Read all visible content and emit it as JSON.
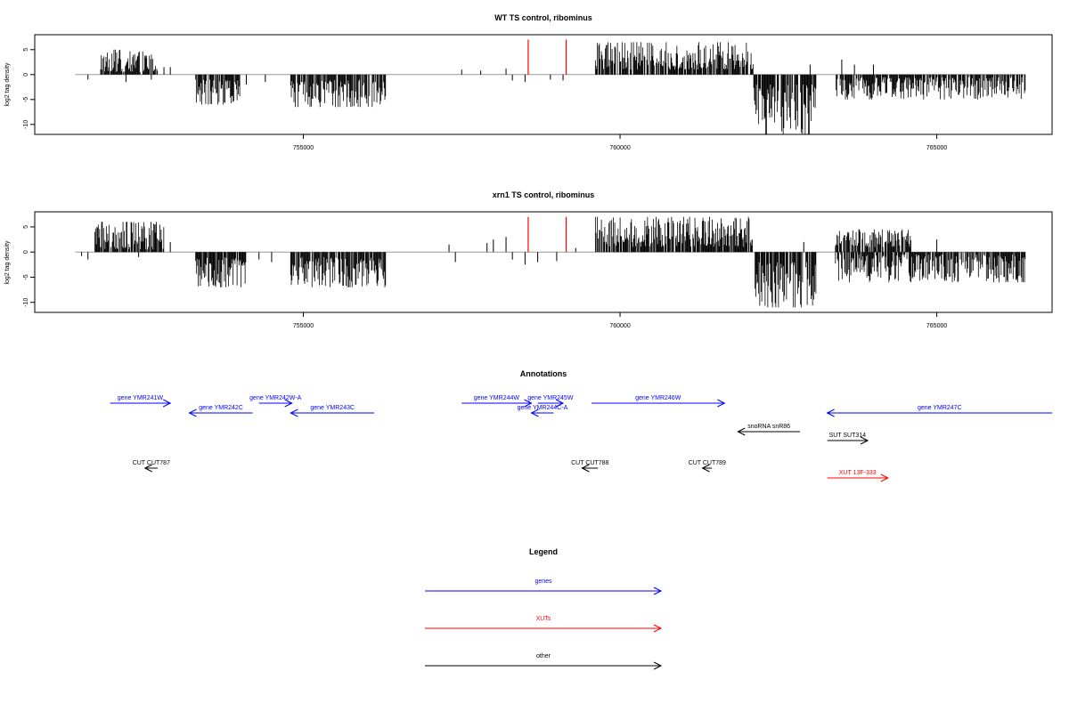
{
  "chart_data": [
    {
      "type": "bar",
      "title": "WT TS control, ribominus",
      "xlabel": "",
      "ylabel": "log2 tag density",
      "xlim": [
        750760,
        766820
      ],
      "ylim": [
        -12,
        8
      ],
      "xticks": [
        755000,
        760000,
        765000
      ],
      "xtick_labels": [
        "755000",
        "760000",
        "765000"
      ],
      "yticks": [
        5,
        0,
        -5,
        -10
      ],
      "ytick_labels": [
        "5",
        "0",
        "-5",
        "-10"
      ],
      "grid": false,
      "baseline": {
        "from": 751400,
        "to": 766400,
        "color": "#999999"
      },
      "regions": [
        {
          "start": 751800,
          "end": 752700,
          "min": 0.5,
          "max": 5.0,
          "sign": 1
        },
        {
          "start": 753300,
          "end": 754000,
          "min": 1.0,
          "max": 6.0,
          "sign": -1
        },
        {
          "start": 754800,
          "end": 756300,
          "min": 1.0,
          "max": 6.5,
          "sign": -1
        },
        {
          "start": 759600,
          "end": 762100,
          "min": 1.0,
          "max": 6.5,
          "sign": 1
        },
        {
          "start": 762100,
          "end": 763100,
          "min": 2.0,
          "max": 12.0,
          "sign": -1
        },
        {
          "start": 763400,
          "end": 766400,
          "min": 0.5,
          "max": 5.0,
          "sign": -1
        }
      ],
      "spikes": [
        {
          "x": 751600,
          "y": -1.0
        },
        {
          "x": 752200,
          "y": -1.5
        },
        {
          "x": 752600,
          "y": -1.0
        },
        {
          "x": 752800,
          "y": 1.5
        },
        {
          "x": 752900,
          "y": 1.5
        },
        {
          "x": 754100,
          "y": -2.0
        },
        {
          "x": 754400,
          "y": -1.5
        },
        {
          "x": 757500,
          "y": 1.0
        },
        {
          "x": 757800,
          "y": 0.8
        },
        {
          "x": 758200,
          "y": 1.2
        },
        {
          "x": 758300,
          "y": -1.2
        },
        {
          "x": 758500,
          "y": -1.5
        },
        {
          "x": 758900,
          "y": -1.0
        },
        {
          "x": 759100,
          "y": -1.2
        },
        {
          "x": 763000,
          "y": 2.0
        },
        {
          "x": 763500,
          "y": 3.0
        },
        {
          "x": 763700,
          "y": 2.0
        },
        {
          "x": 764000,
          "y": 2.0
        }
      ],
      "markers": [
        {
          "x": 758550,
          "y1": 0,
          "y2": 7,
          "color": "#ff0000"
        },
        {
          "x": 759150,
          "y1": 0,
          "y2": 7,
          "color": "#ff0000"
        }
      ]
    },
    {
      "type": "bar",
      "title": "xrn1 TS control, ribominus",
      "xlabel": "",
      "ylabel": "log2 tag density",
      "xlim": [
        750760,
        766820
      ],
      "ylim": [
        -12,
        8
      ],
      "xticks": [
        755000,
        760000,
        765000
      ],
      "xtick_labels": [
        "755000",
        "760000",
        "765000"
      ],
      "yticks": [
        5,
        0,
        -5,
        -10
      ],
      "ytick_labels": [
        "5",
        "0",
        "-5",
        "-10"
      ],
      "grid": false,
      "baseline": {
        "from": 751400,
        "to": 766400,
        "color": "#999999"
      },
      "regions": [
        {
          "start": 751700,
          "end": 752800,
          "min": 0.5,
          "max": 6.0,
          "sign": 1
        },
        {
          "start": 753300,
          "end": 754100,
          "min": 1.0,
          "max": 7.0,
          "sign": -1
        },
        {
          "start": 754800,
          "end": 756300,
          "min": 1.0,
          "max": 7.0,
          "sign": -1
        },
        {
          "start": 759600,
          "end": 762100,
          "min": 1.0,
          "max": 7.0,
          "sign": 1
        },
        {
          "start": 762100,
          "end": 763100,
          "min": 2.0,
          "max": 11.0,
          "sign": -1
        },
        {
          "start": 763400,
          "end": 764600,
          "min": 1.0,
          "max": 4.5,
          "sign": 1
        },
        {
          "start": 763400,
          "end": 766400,
          "min": 0.5,
          "max": 6.0,
          "sign": -1
        }
      ],
      "spikes": [
        {
          "x": 751500,
          "y": -0.8
        },
        {
          "x": 751600,
          "y": -1.5
        },
        {
          "x": 751800,
          "y": 1.0
        },
        {
          "x": 752400,
          "y": -1.0
        },
        {
          "x": 752900,
          "y": 2.0
        },
        {
          "x": 754300,
          "y": -1.5
        },
        {
          "x": 754500,
          "y": -2.0
        },
        {
          "x": 757300,
          "y": 1.5
        },
        {
          "x": 757400,
          "y": -2.0
        },
        {
          "x": 757900,
          "y": 1.8
        },
        {
          "x": 758000,
          "y": 2.5
        },
        {
          "x": 758200,
          "y": 3.0
        },
        {
          "x": 758300,
          "y": -1.5
        },
        {
          "x": 758500,
          "y": -2.5
        },
        {
          "x": 758700,
          "y": -2.0
        },
        {
          "x": 759000,
          "y": -1.8
        },
        {
          "x": 759300,
          "y": 0.8
        },
        {
          "x": 762900,
          "y": 2.0
        },
        {
          "x": 765000,
          "y": 2.5
        }
      ],
      "markers": [
        {
          "x": 758550,
          "y1": 0,
          "y2": 7,
          "color": "#ff0000"
        },
        {
          "x": 759150,
          "y1": 0,
          "y2": 7,
          "color": "#ff0000"
        }
      ]
    }
  ],
  "annotations": {
    "title": "Annotations",
    "xlim": [
      750760,
      766820
    ],
    "colors": {
      "genes": "#0000ff",
      "XUTs": "#ff0000",
      "other": "#000000"
    },
    "features": [
      {
        "label": "gene YMR241W",
        "start": 751950,
        "end": 752900,
        "strand": "+",
        "row": 0,
        "type": "genes"
      },
      {
        "label": "gene YMR242W-A",
        "start": 754300,
        "end": 754820,
        "strand": "+",
        "row": 0,
        "type": "genes"
      },
      {
        "label": "gene YMR242C",
        "start": 753200,
        "end": 754200,
        "strand": "-",
        "row": 1,
        "type": "genes"
      },
      {
        "label": "gene YMR243C",
        "start": 754800,
        "end": 756120,
        "strand": "-",
        "row": 1,
        "type": "genes"
      },
      {
        "label": "gene YMR244W",
        "start": 757500,
        "end": 758600,
        "strand": "+",
        "row": 0,
        "type": "genes"
      },
      {
        "label": "gene YMR245W",
        "start": 758700,
        "end": 759100,
        "strand": "+",
        "row": 0,
        "type": "genes"
      },
      {
        "label": "gene YMR244C-A",
        "start": 758600,
        "end": 758950,
        "strand": "-",
        "row": 1,
        "type": "genes"
      },
      {
        "label": "gene YMR246W",
        "start": 759550,
        "end": 761650,
        "strand": "+",
        "row": 0,
        "type": "genes"
      },
      {
        "label": "gene YMR247C",
        "start": 763270,
        "end": 766820,
        "strand": "-",
        "row": 1,
        "type": "genes"
      },
      {
        "label": "snoRNA snR86",
        "start": 761860,
        "end": 762840,
        "strand": "-",
        "row": 2,
        "type": "other"
      },
      {
        "label": "SUT SUT314",
        "start": 763270,
        "end": 763910,
        "strand": "+",
        "row": 3,
        "type": "other"
      },
      {
        "label": "CUT CUT787",
        "start": 752500,
        "end": 752700,
        "strand": "-",
        "row": 4,
        "type": "other"
      },
      {
        "label": "CUT CUT788",
        "start": 759400,
        "end": 759650,
        "strand": "-",
        "row": 4,
        "type": "other"
      },
      {
        "label": "CUT CUT789",
        "start": 761300,
        "end": 761450,
        "strand": "-",
        "row": 4,
        "type": "other"
      },
      {
        "label": "XUT 13F-333",
        "start": 763270,
        "end": 764230,
        "strand": "+",
        "row": 5,
        "type": "XUTs"
      }
    ]
  },
  "legend": {
    "title": "Legend",
    "items": [
      {
        "label": "genes",
        "color": "#0000ff"
      },
      {
        "label": "XUTs",
        "color": "#ff0000"
      },
      {
        "label": "other",
        "color": "#000000"
      }
    ]
  }
}
